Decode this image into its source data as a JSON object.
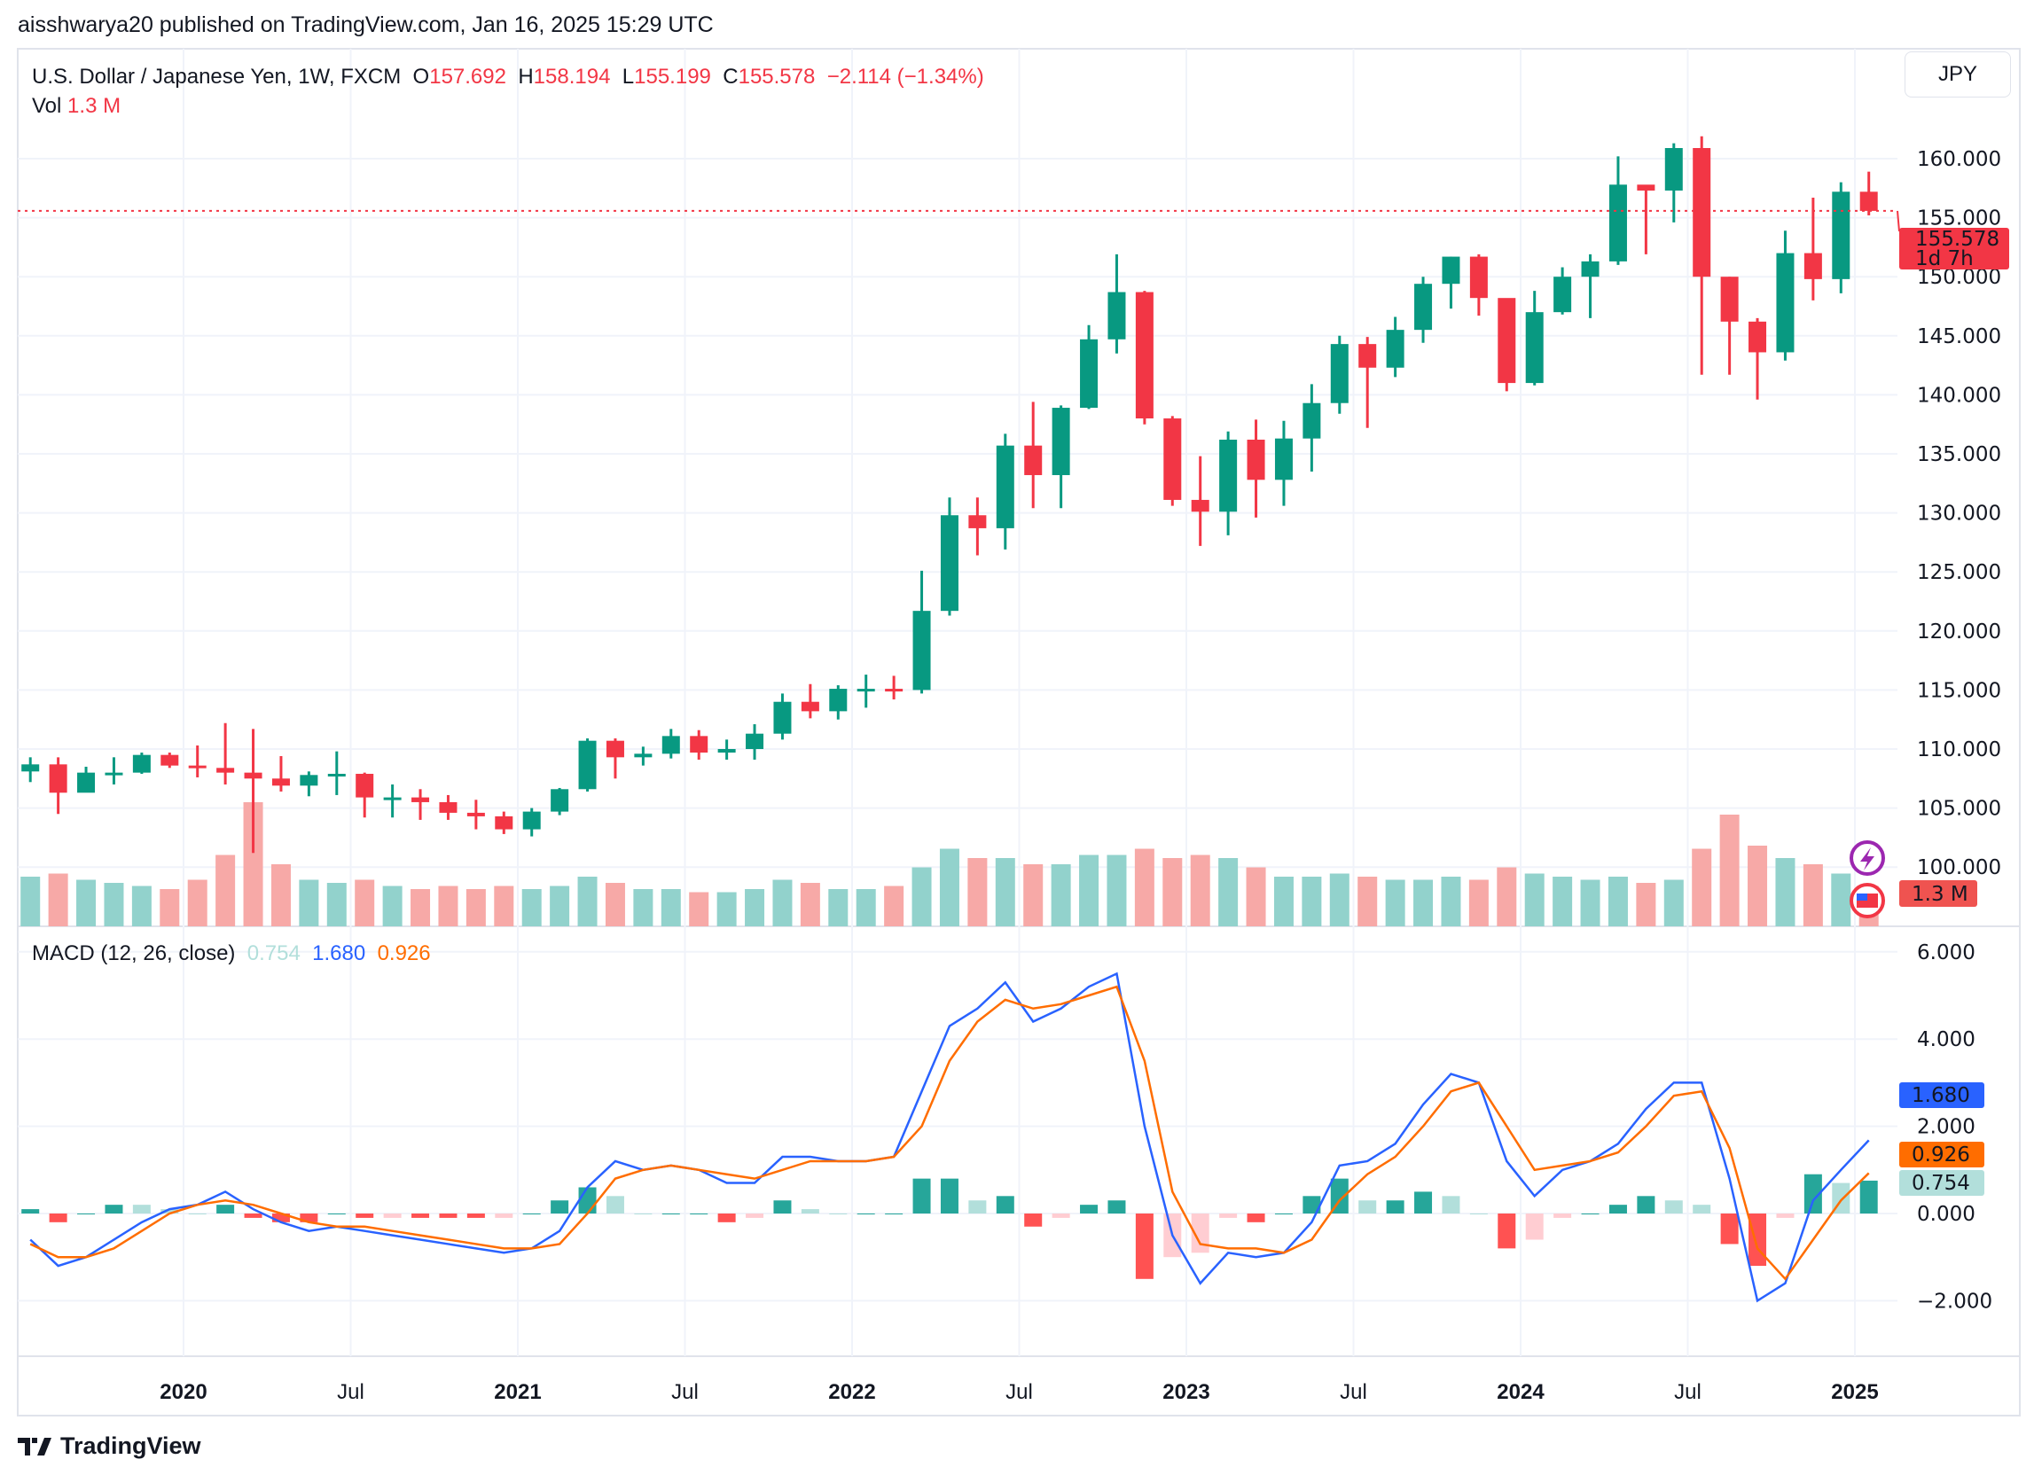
{
  "header": {
    "published": "aisshwarya20 published on TradingView.com, Jan 16, 2025 15:29 UTC"
  },
  "legend": {
    "symbol": "U.S. Dollar / Japanese Yen, 1W, FXCM",
    "o_label": "O",
    "o": "157.692",
    "h_label": "H",
    "h": "158.194",
    "l_label": "L",
    "l": "155.199",
    "c_label": "C",
    "c": "155.578",
    "change": "−2.114 (−1.34%)",
    "vol_label": "Vol",
    "vol": "1.3 M"
  },
  "currency_button": "JPY",
  "price_label": {
    "price": "155.578",
    "countdown": "1d 7h"
  },
  "volume_label": "1.3 M",
  "macd_legend": {
    "title": "MACD (12, 26, close)",
    "hist": "0.754",
    "macd": "1.680",
    "signal": "0.926"
  },
  "brand": "TradingView",
  "colors": {
    "up": "#089981",
    "down": "#F23645",
    "macd": "#2962FF",
    "signal": "#FF6D00",
    "hist_up_strong": "#26A69A",
    "hist_up_weak": "#B2DFDB",
    "hist_down_strong": "#FF5252",
    "hist_down_weak": "#FFCDD2"
  },
  "icons": [
    "lightning-icon",
    "us-flag-icon",
    "tradingview-logo-icon"
  ],
  "chart_data": [
    {
      "type": "candlestick",
      "note_resolution": "monthly approximation of weekly candles",
      "start": "2019-07",
      "price_ticks": [
        "160.000",
        "155.000",
        "150.000",
        "145.000",
        "140.000",
        "135.000",
        "130.000",
        "125.000",
        "120.000",
        "115.000",
        "110.000",
        "105.000",
        "100.000"
      ],
      "ylim": [
        97,
        162
      ],
      "time_ticks": [
        {
          "label": "2020",
          "t": 2020,
          "bold": true
        },
        {
          "label": "Jul",
          "t": 2020.5
        },
        {
          "label": "2021",
          "t": 2021,
          "bold": true
        },
        {
          "label": "Jul",
          "t": 2021.5
        },
        {
          "label": "2022",
          "t": 2022,
          "bold": true
        },
        {
          "label": "Jul",
          "t": 2022.5
        },
        {
          "label": "2023",
          "t": 2023,
          "bold": true
        },
        {
          "label": "Jul",
          "t": 2023.5
        },
        {
          "label": "2024",
          "t": 2024,
          "bold": true
        },
        {
          "label": "Jul",
          "t": 2024.5
        },
        {
          "label": "2025",
          "t": 2025,
          "bold": true
        }
      ],
      "close": [
        108.7,
        106.3,
        108.0,
        108.0,
        109.5,
        108.6,
        108.4,
        108.0,
        107.5,
        106.9,
        107.8,
        107.9,
        105.9,
        105.9,
        105.5,
        104.6,
        104.3,
        103.2,
        104.7,
        106.6,
        110.7,
        109.3,
        109.6,
        111.1,
        109.7,
        110.0,
        111.3,
        114.0,
        113.2,
        115.1,
        115.1,
        115.0,
        121.7,
        129.8,
        128.7,
        135.7,
        133.2,
        138.9,
        144.7,
        148.7,
        138.0,
        131.1,
        130.1,
        136.2,
        132.8,
        136.3,
        139.3,
        144.3,
        142.3,
        145.5,
        149.4,
        151.7,
        148.2,
        141.0,
        147.0,
        150.0,
        151.3,
        157.8,
        157.3,
        160.9,
        150.0,
        146.2,
        143.6,
        152.0,
        149.8,
        157.2,
        155.578
      ],
      "high": [
        109.3,
        109.3,
        108.5,
        109.3,
        109.7,
        109.7,
        110.3,
        112.2,
        111.7,
        109.4,
        108.1,
        109.8,
        108.0,
        107.0,
        106.6,
        106.1,
        105.7,
        104.7,
        105.0,
        106.7,
        110.9,
        110.9,
        110.2,
        111.7,
        111.6,
        110.8,
        112.1,
        114.7,
        115.5,
        115.4,
        116.3,
        116.2,
        125.1,
        131.3,
        131.3,
        136.7,
        139.4,
        139.1,
        145.9,
        151.9,
        148.8,
        138.2,
        134.8,
        136.9,
        137.9,
        137.8,
        140.9,
        145.0,
        144.9,
        146.6,
        150.0,
        151.7,
        151.9,
        147.3,
        148.8,
        150.8,
        151.9,
        160.2,
        157.7,
        161.3,
        161.9,
        150.0,
        146.5,
        153.9,
        156.7,
        158.0,
        158.9
      ],
      "low": [
        107.2,
        104.5,
        106.5,
        107.0,
        107.9,
        108.4,
        107.6,
        107.0,
        101.2,
        106.4,
        106.0,
        106.1,
        104.2,
        104.2,
        104.0,
        104.0,
        103.2,
        102.8,
        102.6,
        104.4,
        106.4,
        107.5,
        108.6,
        109.2,
        109.1,
        109.1,
        109.1,
        110.8,
        112.6,
        112.5,
        113.5,
        114.2,
        114.7,
        121.3,
        126.4,
        126.9,
        130.4,
        130.4,
        138.8,
        143.5,
        137.5,
        130.6,
        127.2,
        128.1,
        129.6,
        130.6,
        133.5,
        138.4,
        137.2,
        141.5,
        144.4,
        147.3,
        146.7,
        140.3,
        140.8,
        146.8,
        146.5,
        151.0,
        151.9,
        154.6,
        141.7,
        141.7,
        139.6,
        142.9,
        148.0,
        148.6,
        155.2
      ],
      "volume_m": [
        1.6,
        1.7,
        1.5,
        1.4,
        1.3,
        1.2,
        1.5,
        2.3,
        4.0,
        2.0,
        1.5,
        1.4,
        1.5,
        1.3,
        1.2,
        1.3,
        1.2,
        1.3,
        1.2,
        1.3,
        1.6,
        1.4,
        1.2,
        1.2,
        1.1,
        1.1,
        1.2,
        1.5,
        1.4,
        1.2,
        1.2,
        1.3,
        1.9,
        2.5,
        2.2,
        2.2,
        2.0,
        2.0,
        2.3,
        2.3,
        2.5,
        2.2,
        2.3,
        2.2,
        1.9,
        1.6,
        1.6,
        1.7,
        1.6,
        1.5,
        1.5,
        1.6,
        1.5,
        1.9,
        1.7,
        1.6,
        1.5,
        1.6,
        1.4,
        1.5,
        2.5,
        3.6,
        2.6,
        2.2,
        2.0,
        1.7,
        1.3
      ]
    },
    {
      "type": "line",
      "title": "MACD (12, 26, close)",
      "yticks": [
        "6.000",
        "4.000",
        "2.000",
        "0.000",
        "−2.000"
      ],
      "ylim": [
        -3.3,
        6.1
      ],
      "series": [
        {
          "name": "MACD",
          "values": [
            -0.6,
            -1.2,
            -1.0,
            -0.6,
            -0.2,
            0.1,
            0.2,
            0.5,
            0.1,
            -0.2,
            -0.4,
            -0.3,
            -0.4,
            -0.5,
            -0.6,
            -0.7,
            -0.8,
            -0.9,
            -0.8,
            -0.4,
            0.6,
            1.2,
            1.0,
            1.1,
            1.0,
            0.7,
            0.7,
            1.3,
            1.3,
            1.2,
            1.2,
            1.3,
            2.8,
            4.3,
            4.7,
            5.3,
            4.4,
            4.7,
            5.2,
            5.5,
            2.0,
            -0.5,
            -1.6,
            -0.9,
            -1.0,
            -0.9,
            -0.2,
            1.1,
            1.2,
            1.6,
            2.5,
            3.2,
            3.0,
            1.2,
            0.4,
            1.0,
            1.2,
            1.6,
            2.4,
            3.0,
            3.0,
            0.8,
            -2.0,
            -1.6,
            0.3,
            1.0,
            1.68
          ]
        },
        {
          "name": "Signal",
          "values": [
            -0.7,
            -1.0,
            -1.0,
            -0.8,
            -0.4,
            0,
            0.2,
            0.3,
            0.2,
            0,
            -0.2,
            -0.3,
            -0.3,
            -0.4,
            -0.5,
            -0.6,
            -0.7,
            -0.8,
            -0.8,
            -0.7,
            0,
            0.8,
            1.0,
            1.1,
            1.0,
            0.9,
            0.8,
            1.0,
            1.2,
            1.2,
            1.2,
            1.3,
            2.0,
            3.5,
            4.4,
            4.9,
            4.7,
            4.8,
            5.0,
            5.2,
            3.5,
            0.5,
            -0.7,
            -0.8,
            -0.8,
            -0.9,
            -0.6,
            0.3,
            0.9,
            1.3,
            2.0,
            2.8,
            3.0,
            2.0,
            1.0,
            1.1,
            1.2,
            1.4,
            2.0,
            2.7,
            2.8,
            1.5,
            -0.8,
            -1.5,
            -0.6,
            0.3,
            0.926
          ]
        }
      ]
    }
  ]
}
